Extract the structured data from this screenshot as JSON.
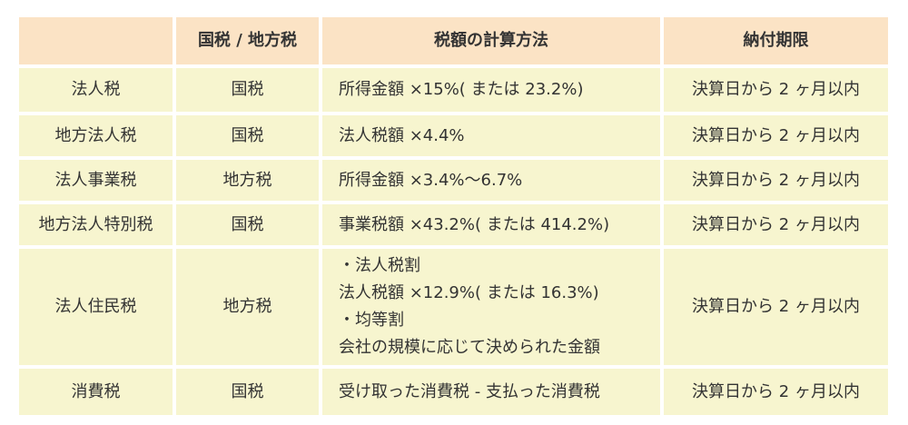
{
  "header": {
    "col1": "",
    "col2": "国税 / 地方税",
    "col3": "税額の計算方法",
    "col4": "納付期限"
  },
  "rows": [
    {
      "name": "法人税",
      "type": "国税",
      "method": [
        "所得金額 ×15%( または 23.2%)"
      ],
      "deadline": "決算日から 2 ヶ月以内"
    },
    {
      "name": "地方法人税",
      "type": "国税",
      "method": [
        "法人税額 ×4.4%"
      ],
      "deadline": "決算日から 2 ヶ月以内"
    },
    {
      "name": "法人事業税",
      "type": "地方税",
      "method": [
        "所得金額 ×3.4%～6.7%"
      ],
      "deadline": "決算日から 2 ヶ月以内"
    },
    {
      "name": "地方法人特別税",
      "type": "国税",
      "method": [
        "事業税額 ×43.2%( または 414.2%)"
      ],
      "deadline": "決算日から 2 ヶ月以内"
    },
    {
      "name": "法人住民税",
      "type": "地方税",
      "method": [
        "・法人税割",
        "法人税額 ×12.9%( または 16.3%)",
        "・均等割",
        "会社の規模に応じて決められた金額"
      ],
      "deadline": "決算日から 2 ヶ月以内"
    },
    {
      "name": "消費税",
      "type": "国税",
      "method": [
        "受け取った消費税 - 支払った消費税"
      ],
      "deadline": "決算日から 2 ヶ月以内"
    }
  ],
  "colors": {
    "header_bg": "#fbe3c5",
    "body_bg": "#f7f5cf",
    "text": "#333333"
  }
}
